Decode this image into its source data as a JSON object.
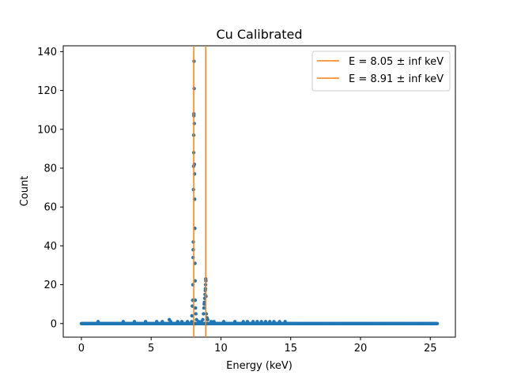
{
  "chart_data": {
    "type": "scatter",
    "title": "Cu Calibrated",
    "xlabel": "Energy (keV)",
    "ylabel": "Count",
    "xlim": [
      -1.3,
      26.8
    ],
    "ylim": [
      -7,
      143
    ],
    "xticks": [
      0,
      5,
      10,
      15,
      20,
      25
    ],
    "yticks": [
      0,
      20,
      40,
      60,
      80,
      100,
      120,
      140
    ],
    "grid": false,
    "legend_position": "top-right",
    "colors": {
      "points": "#1f77b4",
      "lines": "#ff7f0e"
    },
    "vlines": [
      {
        "x": 8.05,
        "label": "E = 8.05 ± inf keV"
      },
      {
        "x": 8.91,
        "label": "E = 8.91 ± inf keV"
      }
    ],
    "baseline": {
      "x_start": 0.0,
      "x_end": 25.5,
      "y": 0
    },
    "points": [
      [
        1.2,
        1
      ],
      [
        3.0,
        1
      ],
      [
        3.8,
        1
      ],
      [
        4.6,
        1
      ],
      [
        5.4,
        1
      ],
      [
        5.8,
        1
      ],
      [
        6.3,
        2
      ],
      [
        6.4,
        1
      ],
      [
        6.9,
        1
      ],
      [
        7.2,
        1
      ],
      [
        7.6,
        1
      ],
      [
        7.9,
        1
      ],
      [
        7.92,
        4
      ],
      [
        7.95,
        9
      ],
      [
        7.98,
        12
      ],
      [
        7.99,
        20
      ],
      [
        8.0,
        34
      ],
      [
        8.01,
        38
      ],
      [
        8.02,
        42
      ],
      [
        8.03,
        69
      ],
      [
        8.04,
        81
      ],
      [
        8.05,
        88
      ],
      [
        8.05,
        97
      ],
      [
        8.06,
        107
      ],
      [
        8.06,
        108
      ],
      [
        8.07,
        135
      ],
      [
        8.08,
        121
      ],
      [
        8.09,
        103
      ],
      [
        8.1,
        82
      ],
      [
        8.11,
        77
      ],
      [
        8.12,
        64
      ],
      [
        8.13,
        49
      ],
      [
        8.14,
        31
      ],
      [
        8.15,
        22
      ],
      [
        8.16,
        12
      ],
      [
        8.18,
        8
      ],
      [
        8.2,
        5
      ],
      [
        8.25,
        2
      ],
      [
        8.4,
        1
      ],
      [
        8.6,
        1
      ],
      [
        8.7,
        2
      ],
      [
        8.75,
        5
      ],
      [
        8.78,
        8
      ],
      [
        8.8,
        10
      ],
      [
        8.82,
        11
      ],
      [
        8.84,
        13
      ],
      [
        8.86,
        15
      ],
      [
        8.88,
        17
      ],
      [
        8.89,
        18
      ],
      [
        8.9,
        20
      ],
      [
        8.91,
        23
      ],
      [
        8.92,
        22
      ],
      [
        8.93,
        14
      ],
      [
        8.95,
        5
      ],
      [
        9.0,
        3
      ],
      [
        9.05,
        2
      ],
      [
        9.3,
        1
      ],
      [
        9.5,
        1
      ],
      [
        10.2,
        1
      ],
      [
        11.0,
        1
      ],
      [
        11.6,
        1
      ],
      [
        11.9,
        1
      ],
      [
        12.3,
        1
      ],
      [
        12.6,
        1
      ],
      [
        12.9,
        1
      ],
      [
        13.2,
        1
      ],
      [
        13.5,
        1
      ],
      [
        13.8,
        1
      ],
      [
        14.2,
        1
      ],
      [
        14.6,
        1
      ]
    ]
  }
}
